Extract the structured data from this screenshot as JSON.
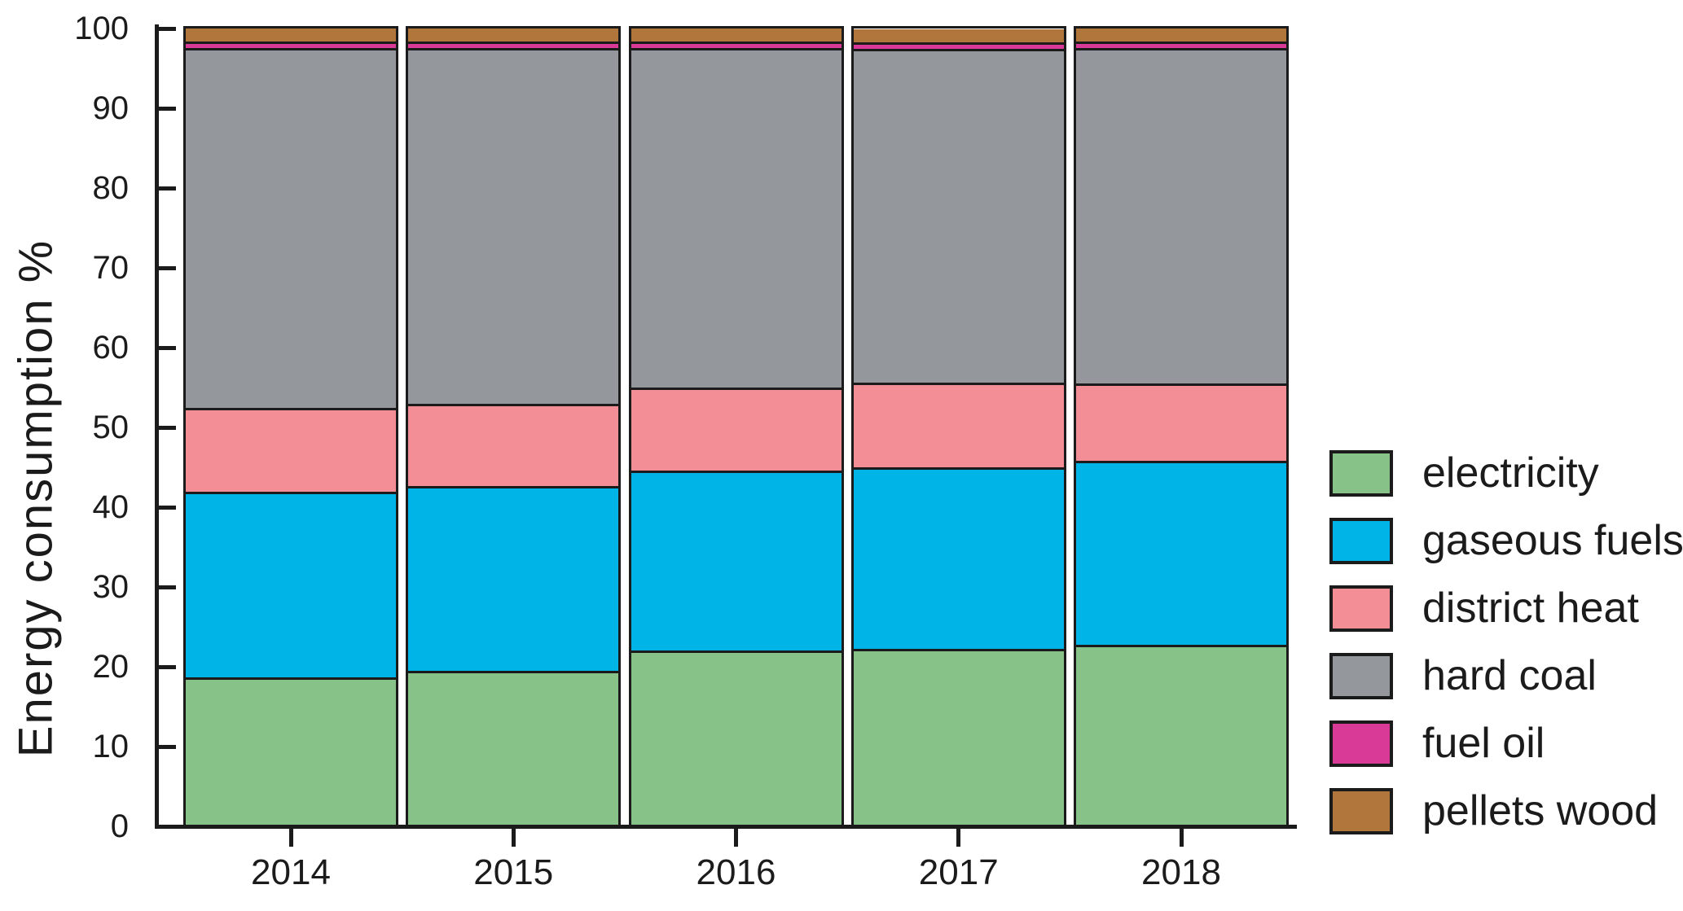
{
  "chart_data": {
    "type": "bar",
    "stacked": true,
    "title": "",
    "ylabel": "Energy consumption  %",
    "xlabel": "",
    "ylim": [
      0,
      100
    ],
    "y_ticks": [
      0,
      10,
      20,
      30,
      40,
      50,
      60,
      70,
      80,
      90,
      100
    ],
    "categories": [
      "2014",
      "2015",
      "2016",
      "2017",
      "2018"
    ],
    "series": [
      {
        "name": "electricity",
        "color": "#87C289",
        "values": [
          18.2,
          19.0,
          21.6,
          21.8,
          22.3
        ]
      },
      {
        "name": "gaseous fuels",
        "color": "#00B4E8",
        "values": [
          23.3,
          23.2,
          22.6,
          22.8,
          23.1
        ]
      },
      {
        "name": "district heat",
        "color": "#F48E96",
        "values": [
          10.5,
          10.4,
          10.4,
          10.6,
          9.7
        ]
      },
      {
        "name": "hard coal",
        "color": "#94979B",
        "values": [
          45.2,
          44.6,
          42.6,
          41.9,
          42.1
        ]
      },
      {
        "name": "fuel oil",
        "color": "#D93A98",
        "values": [
          0.9,
          0.9,
          0.9,
          0.9,
          0.9
        ]
      },
      {
        "name": "pellets wood",
        "color": "#B0763C",
        "values": [
          1.9,
          1.9,
          1.9,
          1.9,
          1.9
        ]
      }
    ],
    "legend_position": "right",
    "grid": false,
    "axis_color": "#1b1b1b",
    "bar_border_color": "#1b1b1b"
  }
}
